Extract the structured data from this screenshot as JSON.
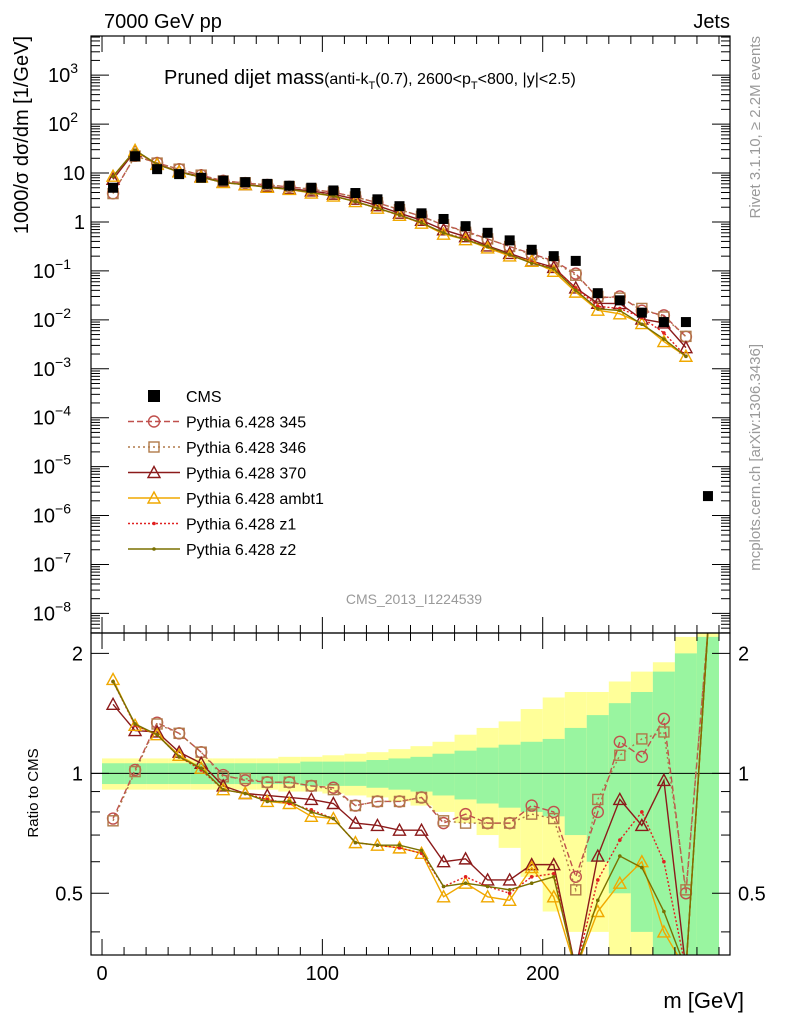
{
  "header": {
    "left": "7000 GeV pp",
    "right": "Jets"
  },
  "side_text": {
    "rivet": "Rivet 3.1.10, ≥ 2.2M events",
    "mcplots": "mcplots.cern.ch [arXiv:1306.3436]"
  },
  "chart_data": {
    "type": "line",
    "title": {
      "main": "Pruned dijet mass",
      "detail_pre": "(anti-k",
      "detail_sub1": "T",
      "detail_mid": "(0.7), 2600<p",
      "detail_sub2": "T",
      "detail_post": "<800, |y|<2.5)"
    },
    "watermark": "CMS_2013_I1224539",
    "xlabel": "m [GeV]",
    "ylabel": "1000/σ dσ/dm [1/GeV]",
    "ratio_ylabel": "Ratio to CMS",
    "xlim": [
      -5,
      285
    ],
    "ylim_log10": [
      -8.4,
      3.8
    ],
    "ratio_ylim": [
      0.35,
      2.25
    ],
    "x_ticks": [
      "0",
      "100",
      "200"
    ],
    "y_ticks": [
      "10^3",
      "10^2",
      "10",
      "1",
      "10^-1",
      "10^-2",
      "10^-3",
      "10^-4",
      "10^-5",
      "10^-6",
      "10^-7",
      "10^-8"
    ],
    "ratio_ticks": [
      "0.5",
      "1",
      "2"
    ],
    "x": [
      5,
      15,
      25,
      35,
      45,
      55,
      65,
      75,
      85,
      95,
      105,
      115,
      125,
      135,
      145,
      155,
      165,
      175,
      185,
      195,
      205,
      215,
      225,
      235,
      245,
      255,
      265,
      275
    ],
    "data": {
      "name": "CMS",
      "values": [
        5.0,
        22,
        12,
        9.5,
        8.0,
        7.0,
        6.5,
        6.0,
        5.5,
        5.0,
        4.4,
        3.9,
        2.9,
        2.1,
        1.5,
        1.15,
        0.82,
        0.6,
        0.42,
        0.27,
        0.2,
        0.16,
        0.035,
        0.025,
        0.014,
        0.009,
        0.009,
        2.5e-06
      ],
      "band_inner": [
        0.06,
        0.06,
        0.06,
        0.06,
        0.06,
        0.06,
        0.06,
        0.06,
        0.06,
        0.07,
        0.07,
        0.07,
        0.08,
        0.09,
        0.1,
        0.12,
        0.14,
        0.16,
        0.18,
        0.2,
        0.22,
        0.3,
        0.4,
        0.5,
        0.6,
        0.8,
        1.0,
        1.2
      ],
      "band_outer": [
        0.09,
        0.09,
        0.09,
        0.09,
        0.09,
        0.09,
        0.09,
        0.09,
        0.1,
        0.1,
        0.11,
        0.12,
        0.13,
        0.15,
        0.17,
        0.2,
        0.25,
        0.3,
        0.35,
        0.45,
        0.55,
        0.6,
        0.6,
        0.7,
        0.8,
        0.9,
        1.2,
        1.3
      ]
    },
    "series": [
      {
        "name": "Pythia 6.428 345",
        "color": "#c0504d",
        "marker": "circle",
        "dash": "6,3",
        "ratio": [
          0.77,
          1.02,
          1.34,
          1.26,
          1.13,
          0.99,
          0.96,
          0.95,
          0.95,
          0.93,
          0.92,
          0.83,
          0.85,
          0.85,
          0.87,
          0.75,
          0.79,
          0.75,
          0.75,
          0.83,
          0.8,
          0.55,
          0.8,
          1.2,
          1.1,
          1.37,
          0.5,
          2.3
        ]
      },
      {
        "name": "Pythia 6.428 346",
        "color": "#b07a4a",
        "marker": "square",
        "dash": "2,3",
        "ratio": [
          0.76,
          1.01,
          1.33,
          1.26,
          1.13,
          0.98,
          0.97,
          0.95,
          0.95,
          0.93,
          0.91,
          0.83,
          0.85,
          0.85,
          0.87,
          0.76,
          0.75,
          0.75,
          0.75,
          0.79,
          0.77,
          0.51,
          0.86,
          1.11,
          1.22,
          1.27,
          0.51,
          2.3
        ]
      },
      {
        "name": "Pythia 6.428 370",
        "color": "#8b1a1a",
        "marker": "triangle",
        "dash": "",
        "ratio": [
          1.49,
          1.28,
          1.27,
          1.13,
          1.06,
          0.93,
          0.89,
          0.88,
          0.87,
          0.86,
          0.84,
          0.75,
          0.74,
          0.72,
          0.72,
          0.6,
          0.61,
          0.54,
          0.54,
          0.59,
          0.59,
          0.28,
          0.62,
          0.86,
          0.74,
          0.96,
          0.3,
          2.3
        ]
      },
      {
        "name": "Pythia 6.428 ambt1",
        "color": "#f0a800",
        "marker": "triangle",
        "dash": "",
        "ratio": [
          1.72,
          1.32,
          1.25,
          1.11,
          1.03,
          0.91,
          0.89,
          0.85,
          0.84,
          0.78,
          0.77,
          0.67,
          0.66,
          0.65,
          0.63,
          0.49,
          0.53,
          0.49,
          0.48,
          0.58,
          0.49,
          0.23,
          0.45,
          0.53,
          0.6,
          0.4,
          0.2,
          2.3
        ]
      },
      {
        "name": "Pythia 6.428 z1",
        "color": "#e02020",
        "marker": "dot",
        "dash": "2,2",
        "ratio": [
          1.7,
          1.32,
          1.25,
          1.1,
          1.02,
          0.91,
          0.89,
          0.86,
          0.84,
          0.81,
          0.77,
          0.67,
          0.66,
          0.65,
          0.63,
          0.52,
          0.55,
          0.52,
          0.5,
          0.55,
          0.56,
          0.28,
          0.54,
          0.68,
          0.8,
          0.6,
          0.2,
          2.3
        ]
      },
      {
        "name": "Pythia 6.428 z2",
        "color": "#7a7000",
        "marker": "dot",
        "dash": "",
        "ratio": [
          1.7,
          1.33,
          1.25,
          1.1,
          1.03,
          0.91,
          0.89,
          0.85,
          0.85,
          0.8,
          0.77,
          0.67,
          0.66,
          0.66,
          0.64,
          0.52,
          0.53,
          0.52,
          0.51,
          0.53,
          0.55,
          0.25,
          0.48,
          0.62,
          0.58,
          0.45,
          0.2,
          2.3
        ]
      }
    ]
  }
}
